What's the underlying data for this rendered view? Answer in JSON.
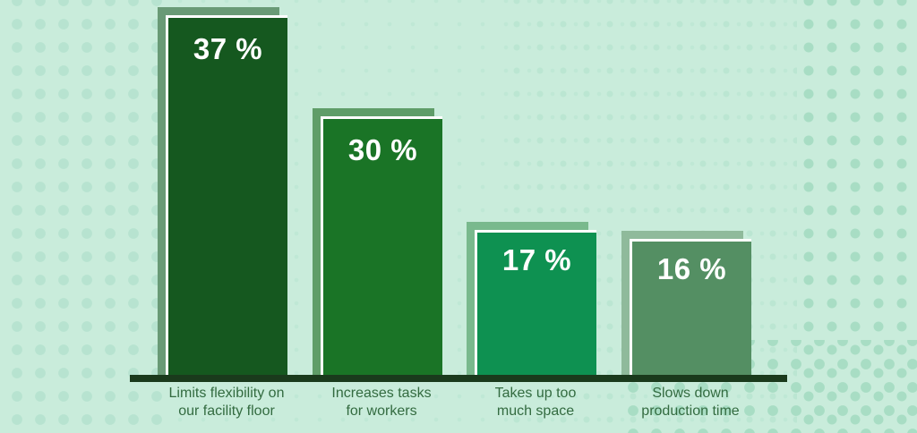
{
  "chart_data": {
    "type": "bar",
    "title": "",
    "xlabel": "",
    "ylabel": "",
    "grid": false,
    "legend": false,
    "ylim": [
      0,
      40
    ],
    "categories": [
      "Limits flexibility on our facility floor",
      "Increases tasks for workers",
      "Takes up too much space",
      "Slows down production time"
    ],
    "values": [
      37,
      30,
      17,
      16
    ],
    "background_color": "#c9ecdb",
    "axis_color": "#1a3a1c",
    "category_label_color": "#336b40",
    "value_label_color": "#ffffff",
    "bars": [
      {
        "value": 37,
        "value_label": "37 %",
        "label_line1": "Limits flexibility on",
        "label_line2": "our facility floor",
        "fill_color": "#15581f",
        "shadow_color": "#699a76"
      },
      {
        "value": 30,
        "value_label": "30 %",
        "label_line1": "Increases tasks",
        "label_line2": "for workers",
        "fill_color": "#1a7426",
        "shadow_color": "#5f9d68"
      },
      {
        "value": 17,
        "value_label": "17 %",
        "label_line1": "Takes up too",
        "label_line2": "much space",
        "fill_color": "#0e9151",
        "shadow_color": "#79b98d"
      },
      {
        "value": 16,
        "value_label": "16 %",
        "label_line1": "Slows down",
        "label_line2": "production time",
        "fill_color": "#548f63",
        "shadow_color": "#8fba9b"
      }
    ]
  }
}
